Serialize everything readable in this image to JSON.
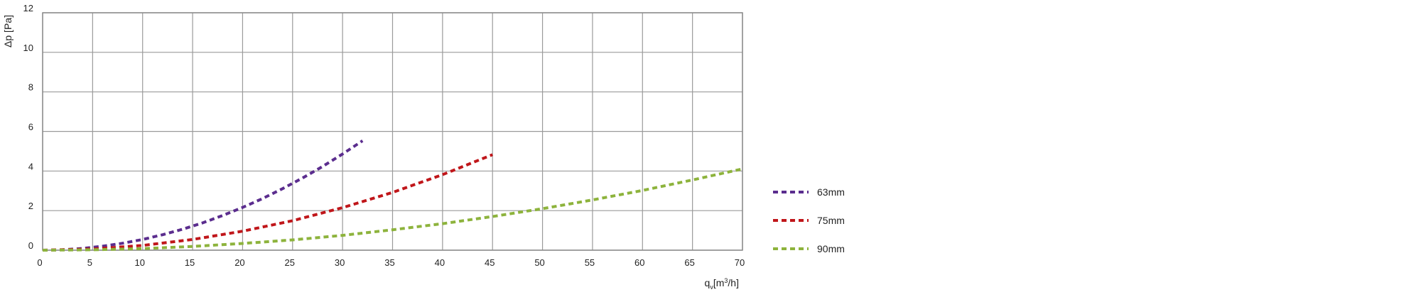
{
  "chart_data": {
    "type": "line",
    "title": "",
    "ylabel": "Δp [Pa]",
    "xlabel": {
      "base": "q",
      "sub": "v",
      "pre": "[m",
      "sup": "3",
      "post": "/h]"
    },
    "xlim": [
      0,
      70
    ],
    "ylim": [
      0,
      12
    ],
    "xticks": [
      0,
      5,
      10,
      15,
      20,
      25,
      30,
      35,
      40,
      45,
      50,
      55,
      60,
      65,
      70
    ],
    "yticks": [
      0,
      2,
      4,
      6,
      8,
      10,
      12
    ],
    "grid": true,
    "legend_position": "right",
    "line_style": "dashed",
    "series": [
      {
        "name": "63mm",
        "color": "#5b2d8e",
        "x": [
          0,
          2,
          4,
          6,
          8,
          10,
          12,
          14,
          16,
          18,
          20,
          22,
          24,
          26,
          28,
          30,
          32
        ],
        "y": [
          0,
          0.02,
          0.09,
          0.2,
          0.35,
          0.54,
          0.78,
          1.06,
          1.38,
          1.75,
          2.16,
          2.61,
          3.11,
          3.65,
          4.23,
          4.86,
          5.53
        ]
      },
      {
        "name": "75mm",
        "color": "#c0161a",
        "x": [
          0,
          5,
          10,
          15,
          20,
          25,
          30,
          35,
          40,
          45
        ],
        "y": [
          0,
          0.06,
          0.24,
          0.54,
          0.96,
          1.49,
          2.15,
          2.92,
          3.82,
          4.83
        ]
      },
      {
        "name": "90mm",
        "color": "#8db33c",
        "x": [
          0,
          5,
          10,
          15,
          20,
          25,
          30,
          35,
          40,
          45,
          50,
          55,
          60,
          65,
          70
        ],
        "y": [
          0,
          0.02,
          0.08,
          0.19,
          0.34,
          0.52,
          0.75,
          1.03,
          1.34,
          1.7,
          2.1,
          2.54,
          3.02,
          3.55,
          4.11
        ]
      }
    ]
  }
}
